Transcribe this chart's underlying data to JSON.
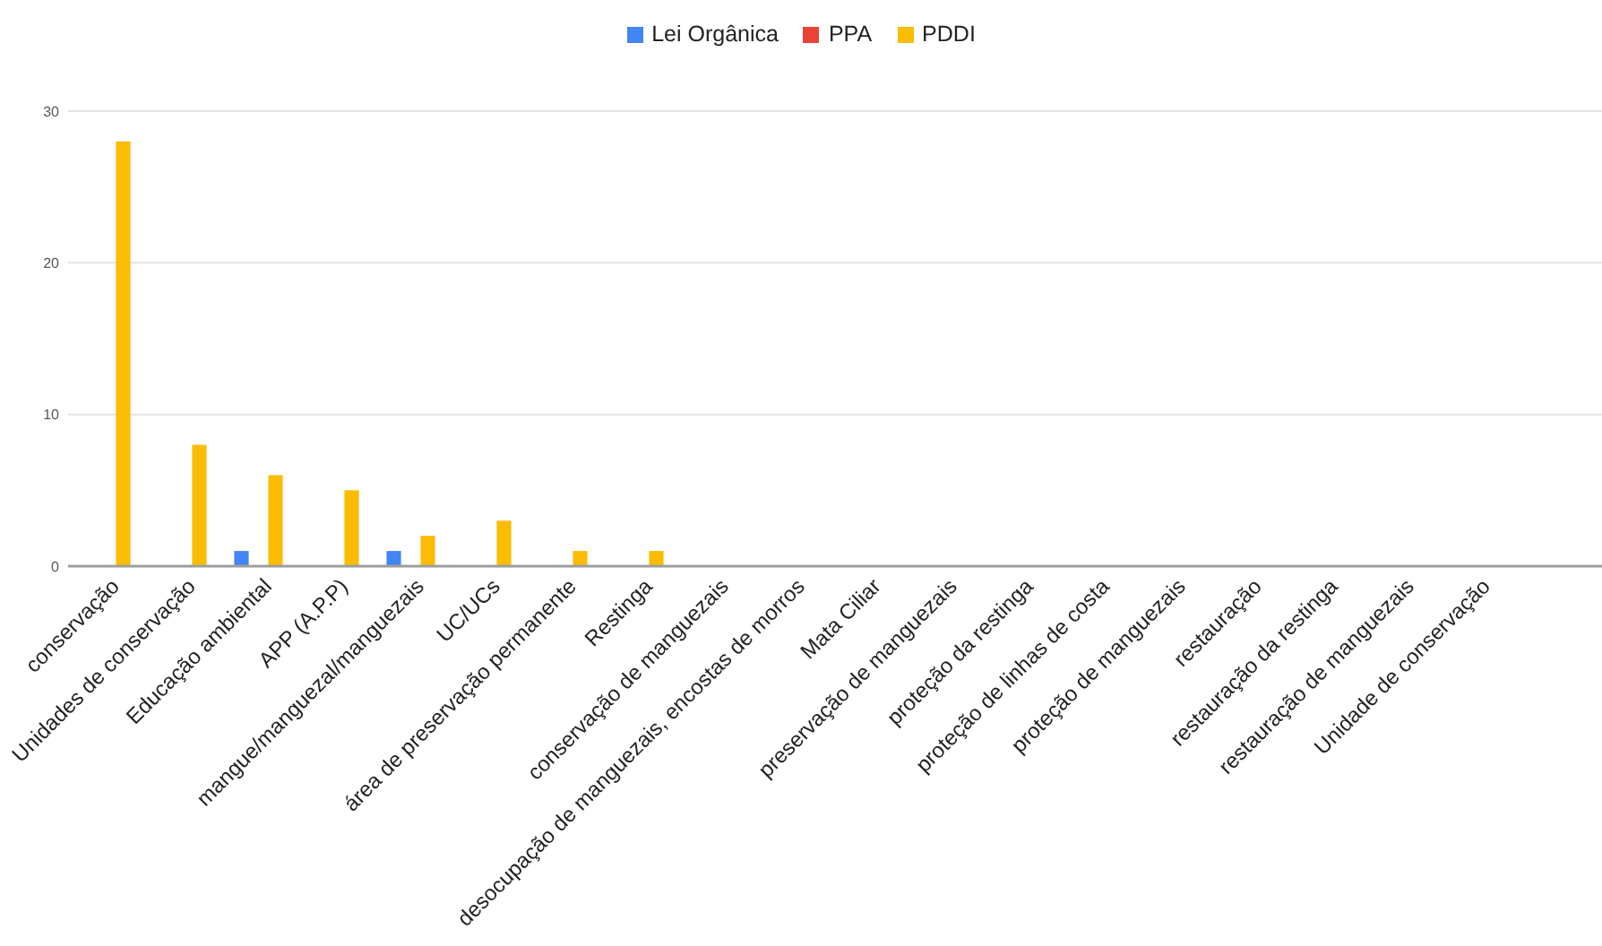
{
  "chart_data": {
    "type": "bar",
    "categories": [
      "conservação",
      "Unidades de conservação",
      "Educação ambiental",
      "APP (A.P.P)",
      "mangue/manguezal/manguezais",
      "UC/UCs",
      "área de preservação permanente",
      "Restinga",
      "conservação de manguezais",
      "desocupação de manguezais, encostas de morros",
      "Mata Ciliar",
      "preservação de manguezais",
      "proteção da restinga",
      "proteção de linhas de costa",
      "proteção de manguezais",
      "restauração",
      "restauração da restinga",
      "restauração de manguezais",
      "Unidade de conservação",
      null
    ],
    "series": [
      {
        "name": "Lei Orgânica",
        "color": "#4285f4",
        "values": [
          0,
          0,
          1,
          0,
          1,
          0,
          0,
          0,
          0,
          0,
          0,
          0,
          0,
          0,
          0,
          0,
          0,
          0,
          0,
          null
        ]
      },
      {
        "name": "PPA",
        "color": "#ea4335",
        "values": [
          0,
          0,
          0,
          0,
          0,
          0,
          0,
          0,
          0,
          0,
          0,
          0,
          0,
          0,
          0,
          0,
          0,
          0,
          0,
          null
        ]
      },
      {
        "name": "PDDI",
        "color": "#fbbc04",
        "values": [
          28,
          8,
          6,
          5,
          2,
          3,
          1,
          1,
          0,
          0,
          0,
          0,
          0,
          0,
          0,
          0,
          0,
          0,
          0,
          null
        ]
      }
    ],
    "ylim": [
      0,
      30
    ],
    "yticks": [
      0,
      10,
      20,
      30
    ],
    "grid": "y",
    "legend": "top"
  }
}
